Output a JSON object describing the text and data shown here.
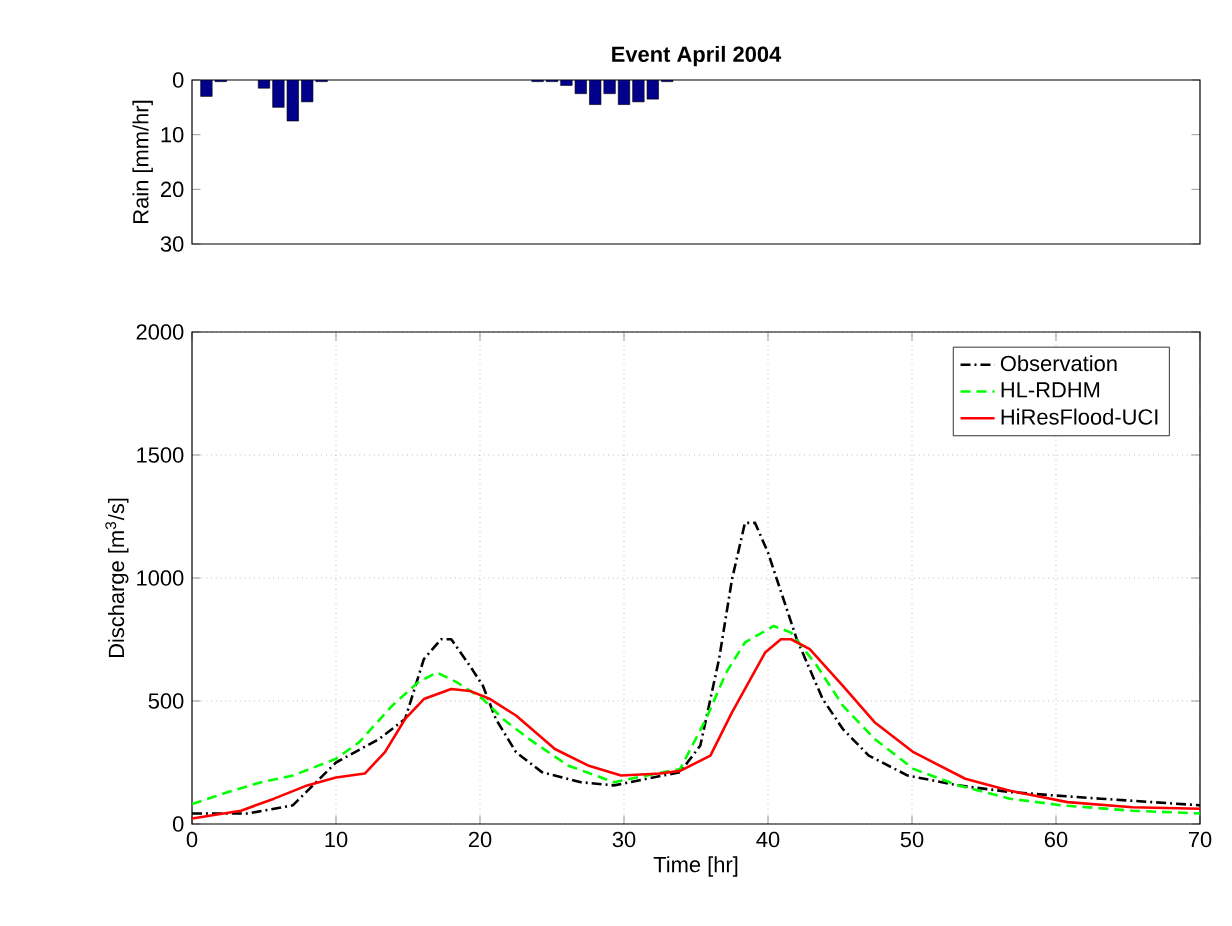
{
  "chart_data": [
    {
      "type": "bar",
      "title": "Event April 2004",
      "ylabel": "Rain [mm/hr]",
      "color": "#00008b",
      "tick_labels": "y",
      "x": [
        1,
        2,
        5,
        6,
        7,
        8,
        9,
        24,
        25,
        26,
        27,
        28,
        29,
        30,
        31,
        32,
        33
      ],
      "values": [
        3,
        0.3,
        1.5,
        5,
        7.5,
        4,
        0.3,
        0.3,
        0.3,
        1,
        2.5,
        4.5,
        2.5,
        4.5,
        4,
        3.5,
        0.3
      ],
      "xlim": [
        0,
        70
      ],
      "ylim": [
        30,
        0
      ],
      "yticks": [
        0,
        10,
        20,
        30
      ]
    },
    {
      "type": "line",
      "xlabel": "Time [hr]",
      "ylabel": "Discharge [m$^{3}$/s]",
      "grid": true,
      "legend": "top right",
      "xlim": [
        0,
        70
      ],
      "ylim": [
        0,
        2000
      ],
      "xticks": [
        0,
        10,
        20,
        30,
        40,
        50,
        60,
        70
      ],
      "yticks": [
        0,
        500,
        1000,
        1500,
        2000
      ],
      "series": [
        {
          "name": "Observation",
          "color": "#000000",
          "line_style": "dashdot",
          "x": [
            0,
            3.9,
            7,
            10,
            13,
            14.8,
            16.1,
            17.3,
            18,
            19.3,
            20.2,
            21.1,
            22.5,
            24.3,
            27,
            29.3,
            31.6,
            33.9,
            35.3,
            36.6,
            37.5,
            38.4,
            39.1,
            40,
            42,
            43.8,
            45.2,
            47,
            49.7,
            53.2,
            56.8,
            59.9,
            63.1,
            66.7,
            70
          ],
          "values": [
            43,
            43,
            76,
            250,
            346,
            427,
            670,
            751,
            751,
            643,
            562,
            427,
            292,
            211,
            170,
            157,
            184,
            211,
            319,
            670,
            995,
            1224,
            1224,
            1103,
            751,
            508,
            386,
            278,
            197,
            157,
            130,
            116,
            103,
            89,
            76
          ]
        },
        {
          "name": "HL-RDHM",
          "color": "#00ff00",
          "line_style": "dashed",
          "x": [
            0,
            2.5,
            4.8,
            7,
            10,
            11.6,
            13.9,
            15.7,
            17,
            18.4,
            20.2,
            21.6,
            23.4,
            26.1,
            29.3,
            31.6,
            33.9,
            35.7,
            37.1,
            38.4,
            40.4,
            41.6,
            43.4,
            45.2,
            47.4,
            50.1,
            53.2,
            56.8,
            60.4,
            65.3,
            70
          ],
          "values": [
            81,
            130,
            170,
            197,
            265,
            332,
            481,
            576,
            616,
            576,
            508,
            427,
            346,
            238,
            170,
            197,
            224,
            427,
            616,
            738,
            805,
            778,
            643,
            481,
            346,
            224,
            157,
            103,
            76,
            54,
            43
          ]
        },
        {
          "name": "HiResFlood-UCI",
          "color": "#ff0000",
          "line_style": "solid",
          "x": [
            0,
            3.4,
            5.7,
            8,
            10,
            12,
            13.4,
            14.8,
            16.1,
            18,
            19.3,
            20.7,
            22.5,
            25.2,
            27.5,
            29.8,
            32.5,
            33.9,
            36,
            37.5,
            39.8,
            40.9,
            41.6,
            42.9,
            45.2,
            47.4,
            50.1,
            53.7,
            56.8,
            60.8,
            65.3,
            70
          ],
          "values": [
            22,
            54,
            103,
            157,
            189,
            205,
            292,
            427,
            508,
            549,
            541,
            508,
            441,
            305,
            238,
            197,
            205,
            216,
            278,
            454,
            697,
            751,
            751,
            711,
            562,
            414,
            292,
            184,
            135,
            89,
            68,
            62
          ]
        }
      ]
    }
  ]
}
